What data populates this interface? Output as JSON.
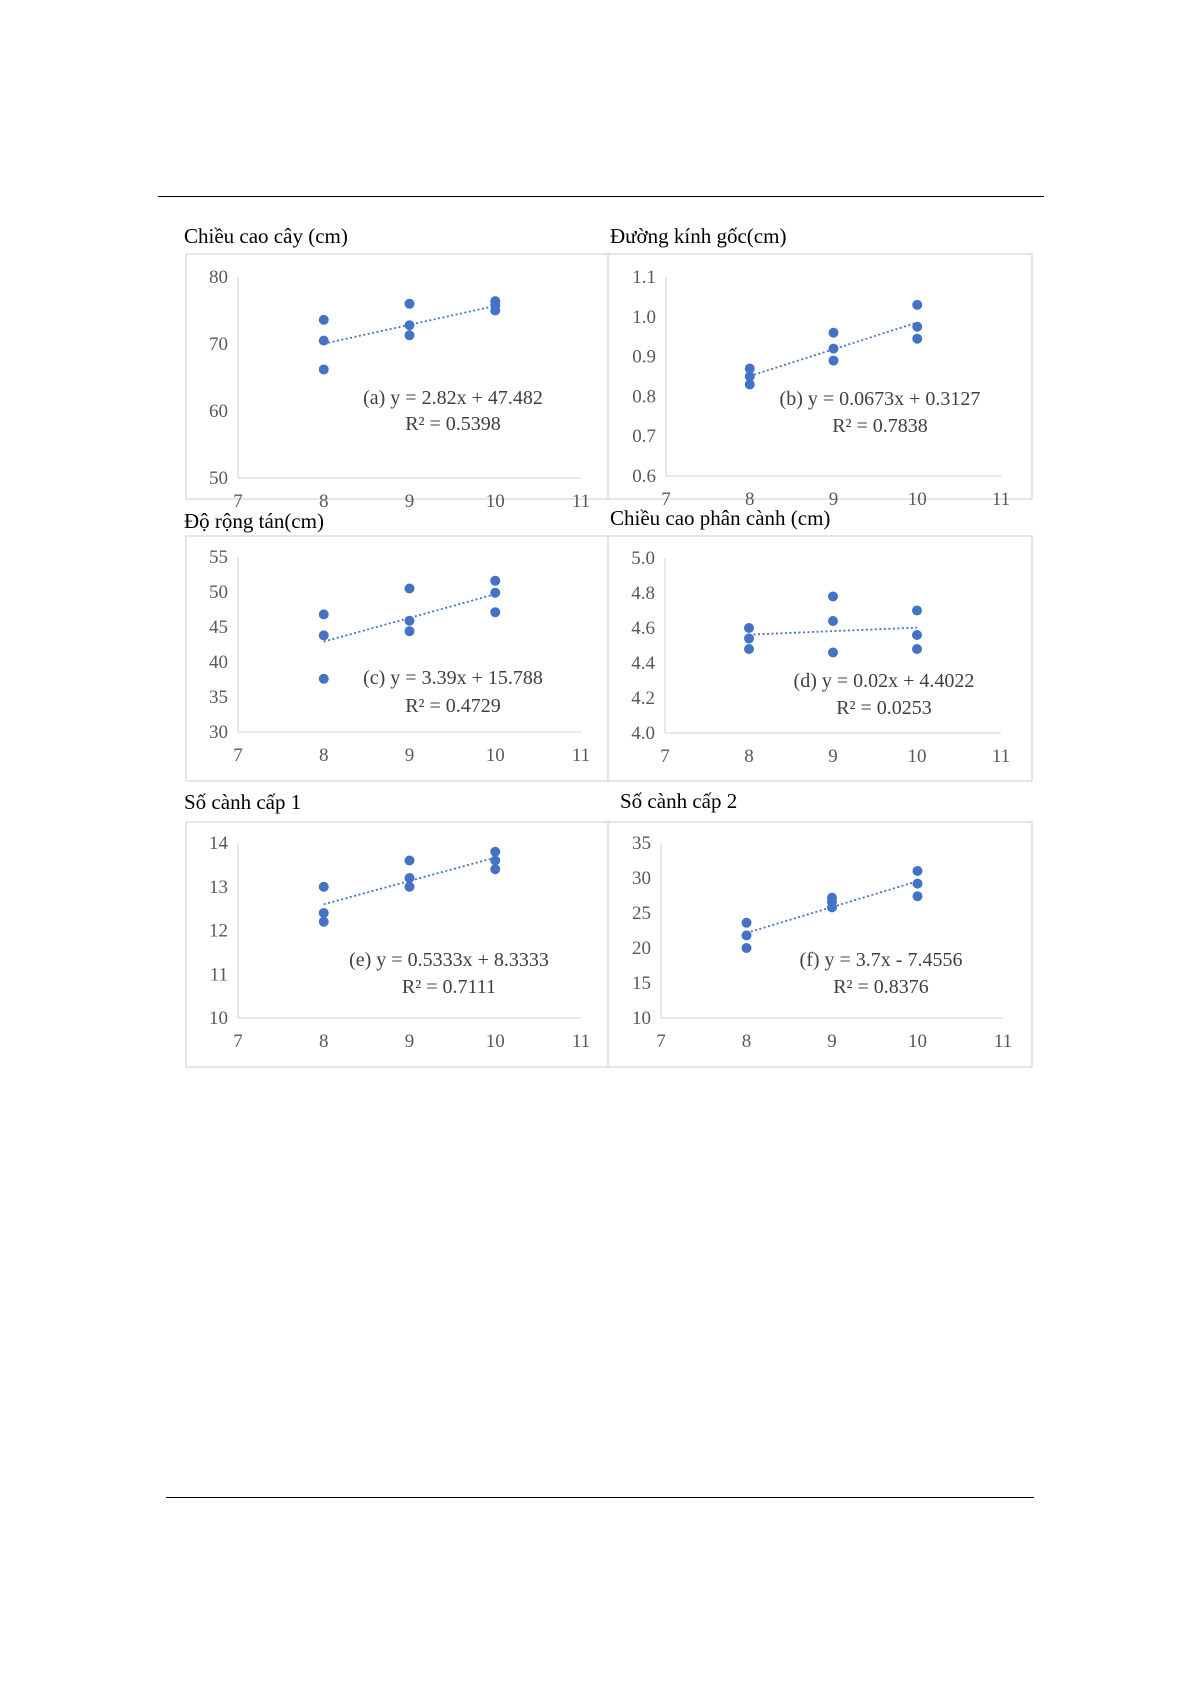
{
  "chart_data": [
    {
      "type": "scatter",
      "title": "Chiều cao cây (cm)",
      "xlim": [
        7,
        11
      ],
      "ylim": [
        50,
        80
      ],
      "xticks": [
        "7",
        "8",
        "9",
        "10",
        "11"
      ],
      "yticks": [
        "50",
        "60",
        "70",
        "80"
      ],
      "series": [
        {
          "points": [
            [
              8,
              73.6
            ],
            [
              8,
              70.5
            ],
            [
              8,
              66.2
            ],
            [
              9,
              76.0
            ],
            [
              9,
              72.8
            ],
            [
              9,
              71.3
            ],
            [
              10,
              76.4
            ],
            [
              10,
              75.8
            ],
            [
              10,
              75.0
            ]
          ],
          "color": "#4472c4"
        }
      ],
      "trendline": {
        "slope": 2.82,
        "intercept": 47.482,
        "style": "dotted"
      },
      "annotations": [
        "(a) y = 2.82x + 47.482",
        "R² = 0.5398"
      ],
      "grid": false
    },
    {
      "type": "scatter",
      "title": "Đường kính gốc(cm)",
      "xlim": [
        7,
        11
      ],
      "ylim": [
        0.6,
        1.1
      ],
      "xticks": [
        "7",
        "8",
        "9",
        "10",
        "11"
      ],
      "yticks": [
        "0.6",
        "0.7",
        "0.8",
        "0.9",
        "1.0",
        "1.1"
      ],
      "series": [
        {
          "points": [
            [
              8,
              0.87
            ],
            [
              8,
              0.85
            ],
            [
              8,
              0.83
            ],
            [
              9,
              0.96
            ],
            [
              9,
              0.92
            ],
            [
              9,
              0.89
            ],
            [
              10,
              1.03
            ],
            [
              10,
              0.975
            ],
            [
              10,
              0.945
            ]
          ],
          "color": "#4472c4"
        }
      ],
      "trendline": {
        "slope": 0.0673,
        "intercept": 0.3127,
        "style": "dotted"
      },
      "annotations": [
        "(b) y = 0.0673x  + 0.3127",
        "R² = 0.7838"
      ],
      "grid": false
    },
    {
      "type": "scatter",
      "title": "Độ rộng tán(cm)",
      "xlim": [
        7,
        11
      ],
      "ylim": [
        30,
        55
      ],
      "xticks": [
        "7",
        "8",
        "9",
        "10",
        "11"
      ],
      "yticks": [
        "30",
        "35",
        "40",
        "45",
        "50",
        "55"
      ],
      "series": [
        {
          "points": [
            [
              8,
              46.8
            ],
            [
              8,
              43.8
            ],
            [
              8,
              37.6
            ],
            [
              9,
              50.5
            ],
            [
              9,
              45.9
            ],
            [
              9,
              44.4
            ],
            [
              10,
              51.6
            ],
            [
              10,
              49.9
            ],
            [
              10,
              47.1
            ]
          ],
          "color": "#4472c4"
        }
      ],
      "trendline": {
        "slope": 3.39,
        "intercept": 15.788,
        "style": "dotted"
      },
      "annotations": [
        "(c) y = 3.39x + 15.788",
        "R² = 0.4729"
      ],
      "grid": false
    },
    {
      "type": "scatter",
      "title": "Chiều cao phân cành (cm)",
      "xlim": [
        7,
        11
      ],
      "ylim": [
        4.0,
        5.0
      ],
      "xticks": [
        "7",
        "8",
        "9",
        "10",
        "11"
      ],
      "yticks": [
        "4.0",
        "4.2",
        "4.4",
        "4.6",
        "4.8",
        "5.0"
      ],
      "series": [
        {
          "points": [
            [
              8,
              4.6
            ],
            [
              8,
              4.54
            ],
            [
              8,
              4.48
            ],
            [
              9,
              4.78
            ],
            [
              9,
              4.64
            ],
            [
              9,
              4.46
            ],
            [
              10,
              4.7
            ],
            [
              10,
              4.56
            ],
            [
              10,
              4.48
            ]
          ],
          "color": "#4472c4"
        }
      ],
      "trendline": {
        "slope": 0.02,
        "intercept": 4.4022,
        "style": "dotted"
      },
      "annotations": [
        "(d) y = 0.02x + 4.4022",
        "R² = 0.0253"
      ],
      "grid": false
    },
    {
      "type": "scatter",
      "title": "Số cành cấp 1",
      "xlim": [
        7,
        11
      ],
      "ylim": [
        10,
        14
      ],
      "xticks": [
        "7",
        "8",
        "9",
        "10",
        "11"
      ],
      "yticks": [
        "10",
        "11",
        "12",
        "13",
        "14"
      ],
      "series": [
        {
          "points": [
            [
              8,
              13.0
            ],
            [
              8,
              12.4
            ],
            [
              8,
              12.2
            ],
            [
              9,
              13.6
            ],
            [
              9,
              13.2
            ],
            [
              9,
              13.0
            ],
            [
              10,
              13.8
            ],
            [
              10,
              13.6
            ],
            [
              10,
              13.4
            ]
          ],
          "color": "#4472c4"
        }
      ],
      "trendline": {
        "slope": 0.5333,
        "intercept": 8.3333,
        "style": "dotted"
      },
      "annotations": [
        "(e) y = 0.5333x + 8.3333",
        "R² = 0.7111"
      ],
      "grid": false
    },
    {
      "type": "scatter",
      "title": "Số cành cấp 2",
      "xlim": [
        7,
        11
      ],
      "ylim": [
        10,
        35
      ],
      "xticks": [
        "7",
        "8",
        "9",
        "10",
        "11"
      ],
      "yticks": [
        "10",
        "15",
        "20",
        "25",
        "30",
        "35"
      ],
      "series": [
        {
          "points": [
            [
              8,
              23.6
            ],
            [
              8,
              21.8
            ],
            [
              8,
              20.0
            ],
            [
              9,
              27.2
            ],
            [
              9,
              26.6
            ],
            [
              9,
              25.8
            ],
            [
              10,
              31.0
            ],
            [
              10,
              29.2
            ],
            [
              10,
              27.4
            ]
          ],
          "color": "#4472c4"
        }
      ],
      "trendline": {
        "slope": 3.7,
        "intercept": -7.4556,
        "style": "dotted"
      },
      "annotations": [
        "(f) y = 3.7x - 7.4556",
        "R² = 0.8376"
      ],
      "grid": false
    }
  ]
}
